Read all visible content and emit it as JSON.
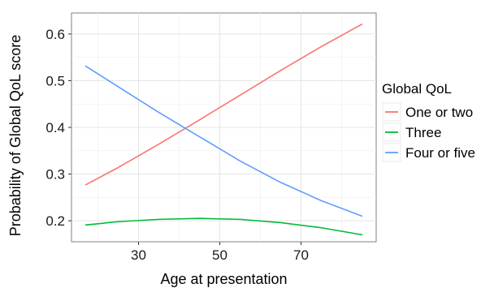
{
  "chart_data": {
    "type": "line",
    "title": "",
    "xlabel": "Age at presentation",
    "ylabel": "Probability of Global QoL score",
    "xlim": [
      13.5,
      88.5
    ],
    "ylim": [
      0.155,
      0.645
    ],
    "x_ticks": [
      30,
      50,
      70
    ],
    "y_ticks": [
      0.2,
      0.3,
      0.4,
      0.5,
      0.6
    ],
    "x_tick_labels": [
      "30",
      "50",
      "70"
    ],
    "y_tick_labels": [
      "0.2",
      "0.3",
      "0.4",
      "0.5",
      "0.6"
    ],
    "grid": true,
    "legend": {
      "title": "Global QoL",
      "position": "right"
    },
    "x": [
      17,
      25,
      35,
      45,
      55,
      65,
      75,
      85
    ],
    "series": [
      {
        "name": "One or two",
        "color": "#F8766D",
        "values": [
          0.277,
          0.314,
          0.364,
          0.416,
          0.469,
          0.522,
          0.573,
          0.621
        ]
      },
      {
        "name": "Three",
        "color": "#00BA38",
        "values": [
          0.191,
          0.198,
          0.203,
          0.205,
          0.203,
          0.196,
          0.185,
          0.17
        ]
      },
      {
        "name": "Four or five",
        "color": "#619CFF",
        "values": [
          0.531,
          0.487,
          0.432,
          0.38,
          0.328,
          0.282,
          0.243,
          0.21
        ]
      }
    ]
  }
}
